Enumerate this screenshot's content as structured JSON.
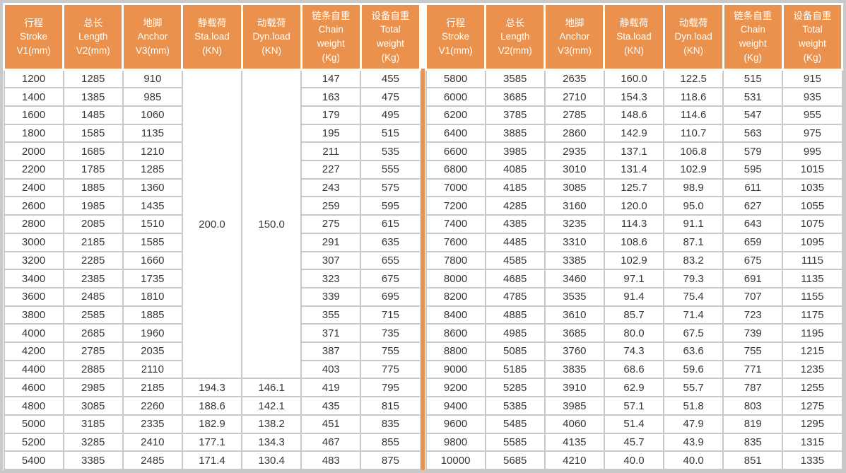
{
  "colors": {
    "header_bg": "#ea924d",
    "header_text": "#ffffff",
    "grid": "#c9c9c9",
    "text": "#3b3533",
    "divider": "#ea924d",
    "background": "#ffffff"
  },
  "header_columns": [
    {
      "name": "stroke",
      "lines": [
        "行程",
        "Stroke",
        "V1(mm)"
      ]
    },
    {
      "name": "length",
      "lines": [
        "总长",
        "Length",
        "V2(mm)"
      ]
    },
    {
      "name": "anchor",
      "lines": [
        "地脚",
        "Anchor",
        "V3(mm)"
      ]
    },
    {
      "name": "static-load",
      "lines": [
        "静载荷",
        "Sta.load",
        "(KN)"
      ]
    },
    {
      "name": "dynamic-load",
      "lines": [
        "动载荷",
        "Dyn.load",
        "(KN)"
      ]
    },
    {
      "name": "chain-weight",
      "lines": [
        "链条自重",
        "Chain",
        "weight",
        "(Kg)"
      ]
    },
    {
      "name": "total-weight",
      "lines": [
        "设备自重",
        "Total",
        "weight",
        "(Kg)"
      ]
    }
  ],
  "tables": {
    "left": {
      "merged": {
        "start_row": 0,
        "rowspan": 17,
        "col_indices": [
          3,
          4
        ],
        "values": [
          "200.0",
          "150.0"
        ]
      },
      "rows": [
        [
          "1200",
          "1285",
          "910",
          null,
          null,
          "147",
          "455"
        ],
        [
          "1400",
          "1385",
          "985",
          null,
          null,
          "163",
          "475"
        ],
        [
          "1600",
          "1485",
          "1060",
          null,
          null,
          "179",
          "495"
        ],
        [
          "1800",
          "1585",
          "1135",
          null,
          null,
          "195",
          "515"
        ],
        [
          "2000",
          "1685",
          "1210",
          null,
          null,
          "211",
          "535"
        ],
        [
          "2200",
          "1785",
          "1285",
          null,
          null,
          "227",
          "555"
        ],
        [
          "2400",
          "1885",
          "1360",
          null,
          null,
          "243",
          "575"
        ],
        [
          "2600",
          "1985",
          "1435",
          null,
          null,
          "259",
          "595"
        ],
        [
          "2800",
          "2085",
          "1510",
          null,
          null,
          "275",
          "615"
        ],
        [
          "3000",
          "2185",
          "1585",
          null,
          null,
          "291",
          "635"
        ],
        [
          "3200",
          "2285",
          "1660",
          null,
          null,
          "307",
          "655"
        ],
        [
          "3400",
          "2385",
          "1735",
          null,
          null,
          "323",
          "675"
        ],
        [
          "3600",
          "2485",
          "1810",
          null,
          null,
          "339",
          "695"
        ],
        [
          "3800",
          "2585",
          "1885",
          null,
          null,
          "355",
          "715"
        ],
        [
          "4000",
          "2685",
          "1960",
          null,
          null,
          "371",
          "735"
        ],
        [
          "4200",
          "2785",
          "2035",
          null,
          null,
          "387",
          "755"
        ],
        [
          "4400",
          "2885",
          "2110",
          null,
          null,
          "403",
          "775"
        ],
        [
          "4600",
          "2985",
          "2185",
          "194.3",
          "146.1",
          "419",
          "795"
        ],
        [
          "4800",
          "3085",
          "2260",
          "188.6",
          "142.1",
          "435",
          "815"
        ],
        [
          "5000",
          "3185",
          "2335",
          "182.9",
          "138.2",
          "451",
          "835"
        ],
        [
          "5200",
          "3285",
          "2410",
          "177.1",
          "134.3",
          "467",
          "855"
        ],
        [
          "5400",
          "3385",
          "2485",
          "171.4",
          "130.4",
          "483",
          "875"
        ]
      ]
    },
    "right": {
      "merged": null,
      "rows": [
        [
          "5800",
          "3585",
          "2635",
          "160.0",
          "122.5",
          "515",
          "915"
        ],
        [
          "6000",
          "3685",
          "2710",
          "154.3",
          "118.6",
          "531",
          "935"
        ],
        [
          "6200",
          "3785",
          "2785",
          "148.6",
          "114.6",
          "547",
          "955"
        ],
        [
          "6400",
          "3885",
          "2860",
          "142.9",
          "110.7",
          "563",
          "975"
        ],
        [
          "6600",
          "3985",
          "2935",
          "137.1",
          "106.8",
          "579",
          "995"
        ],
        [
          "6800",
          "4085",
          "3010",
          "131.4",
          "102.9",
          "595",
          "1015"
        ],
        [
          "7000",
          "4185",
          "3085",
          "125.7",
          "98.9",
          "611",
          "1035"
        ],
        [
          "7200",
          "4285",
          "3160",
          "120.0",
          "95.0",
          "627",
          "1055"
        ],
        [
          "7400",
          "4385",
          "3235",
          "114.3",
          "91.1",
          "643",
          "1075"
        ],
        [
          "7600",
          "4485",
          "3310",
          "108.6",
          "87.1",
          "659",
          "1095"
        ],
        [
          "7800",
          "4585",
          "3385",
          "102.9",
          "83.2",
          "675",
          "1115"
        ],
        [
          "8000",
          "4685",
          "3460",
          "97.1",
          "79.3",
          "691",
          "1135"
        ],
        [
          "8200",
          "4785",
          "3535",
          "91.4",
          "75.4",
          "707",
          "1155"
        ],
        [
          "8400",
          "4885",
          "3610",
          "85.7",
          "71.4",
          "723",
          "1175"
        ],
        [
          "8600",
          "4985",
          "3685",
          "80.0",
          "67.5",
          "739",
          "1195"
        ],
        [
          "8800",
          "5085",
          "3760",
          "74.3",
          "63.6",
          "755",
          "1215"
        ],
        [
          "9000",
          "5185",
          "3835",
          "68.6",
          "59.6",
          "771",
          "1235"
        ],
        [
          "9200",
          "5285",
          "3910",
          "62.9",
          "55.7",
          "787",
          "1255"
        ],
        [
          "9400",
          "5385",
          "3985",
          "57.1",
          "51.8",
          "803",
          "1275"
        ],
        [
          "9600",
          "5485",
          "4060",
          "51.4",
          "47.9",
          "819",
          "1295"
        ],
        [
          "9800",
          "5585",
          "4135",
          "45.7",
          "43.9",
          "835",
          "1315"
        ],
        [
          "10000",
          "5685",
          "4210",
          "40.0",
          "40.0",
          "851",
          "1335"
        ]
      ]
    }
  }
}
